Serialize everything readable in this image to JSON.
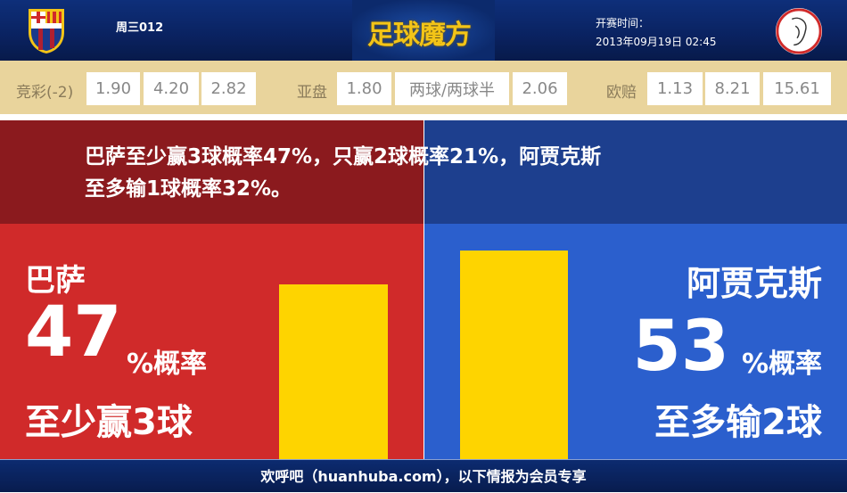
{
  "header": {
    "match_no": "周三012",
    "logo_text": "足球魔方",
    "kickoff_label": "开赛时间：",
    "kickoff_time": "2013年09月19日 02:45",
    "home_crest": "fc-barcelona-crest",
    "away_crest": "ajax-crest"
  },
  "odds": {
    "jingcai": {
      "label": "竞彩(-2)",
      "values": [
        "1.90",
        "4.20",
        "2.82"
      ]
    },
    "yapan": {
      "label": "亚盘",
      "values": [
        "1.80",
        "两球/两球半",
        "2.06"
      ]
    },
    "ouzhou": {
      "label": "欧赔",
      "values": [
        "1.13",
        "8.21",
        "15.61"
      ]
    }
  },
  "summary": {
    "line1": "巴萨至少赢3球概率47%，只赢2球概率21%，阿贾克斯",
    "line2": "至多输1球概率32%。"
  },
  "home": {
    "team": "巴萨",
    "percent": "47",
    "suffix": "%概率",
    "outcome": "至少赢3球",
    "value": 47
  },
  "away": {
    "team": "阿贾克斯",
    "percent": "53",
    "suffix": "%概率",
    "outcome": "至多输2球",
    "value": 53
  },
  "colors": {
    "home": "#d02a2a",
    "away": "#2b5fcd",
    "bar": "#fed400",
    "odds_bg": "#e9d49c"
  },
  "footer": {
    "text": "欢呼吧（huanhuba.com），以下情报为会员专享"
  }
}
